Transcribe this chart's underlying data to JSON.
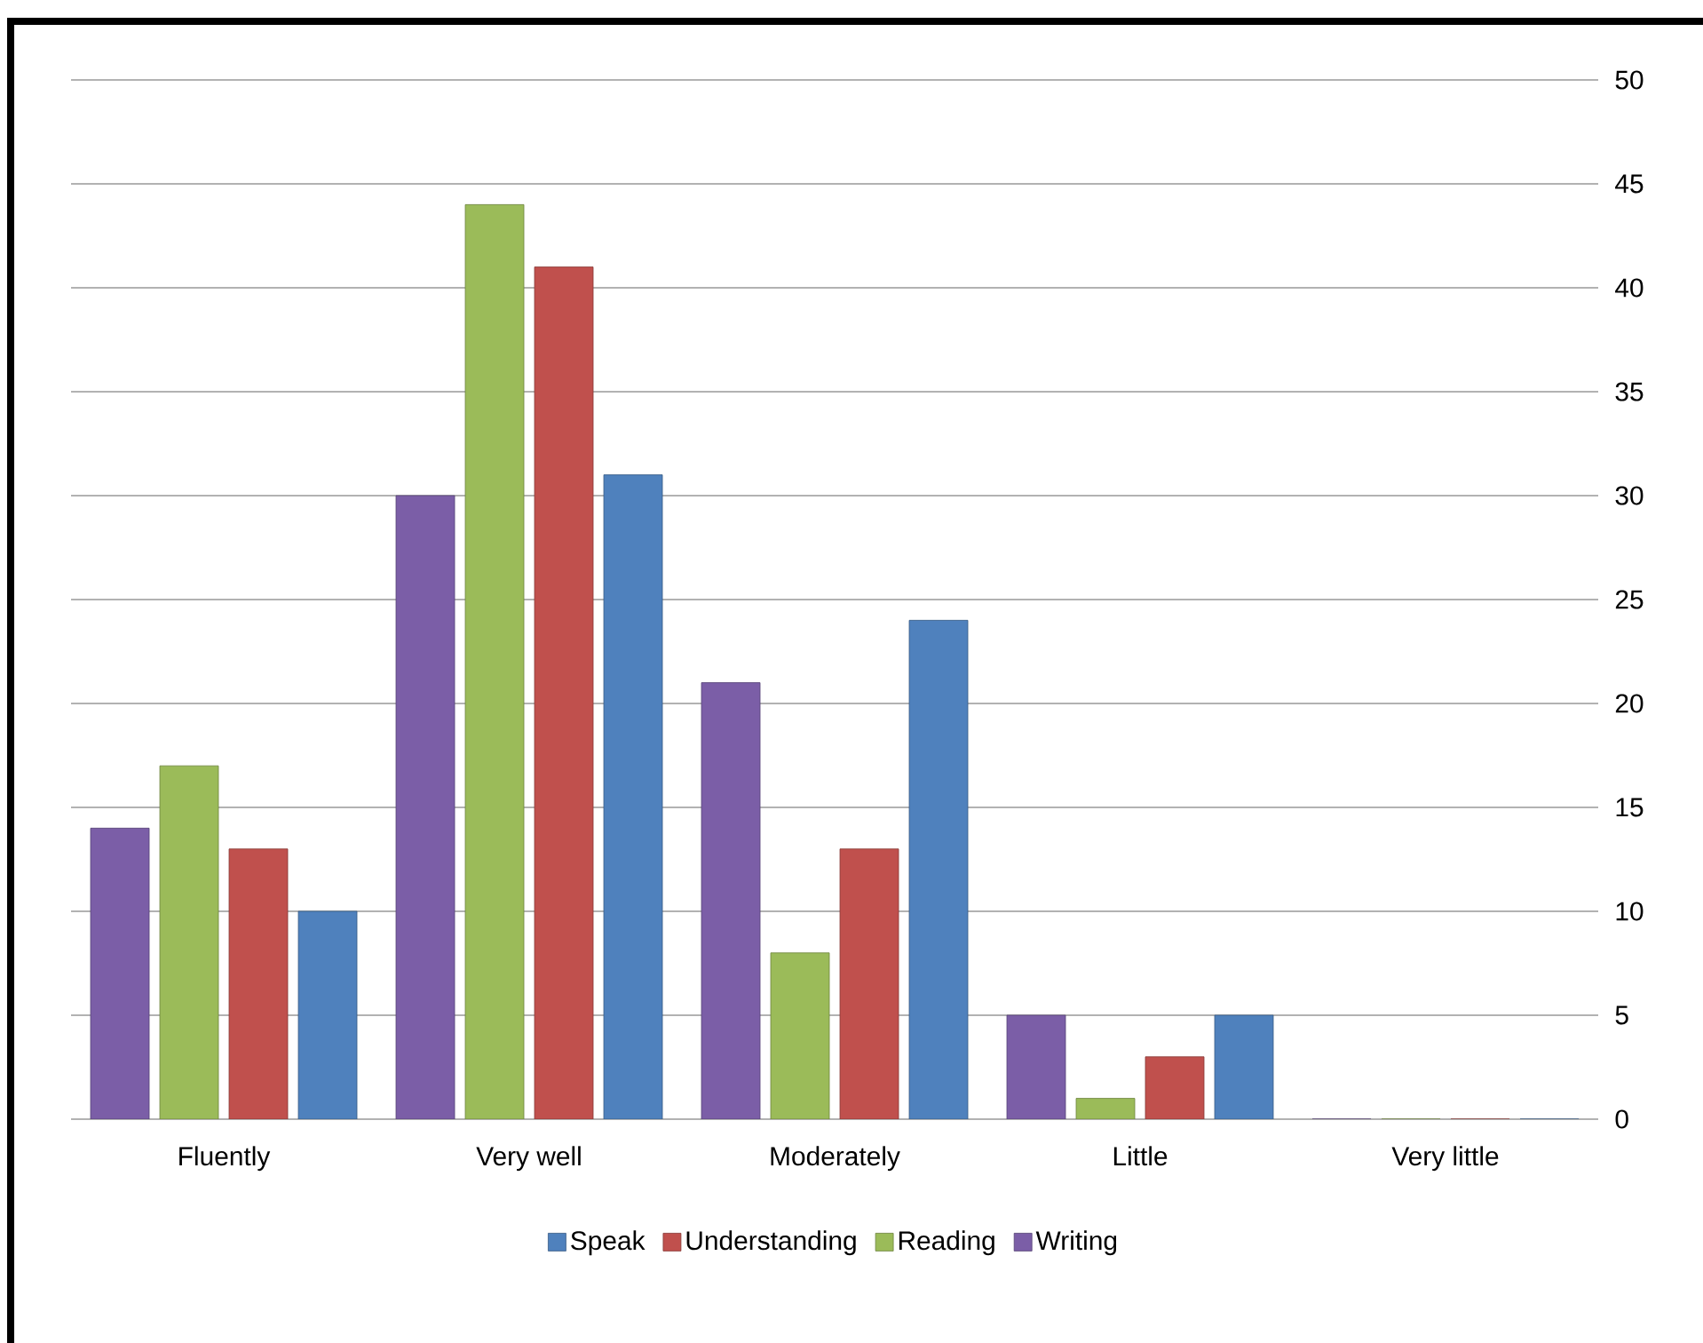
{
  "chart_data": {
    "type": "bar",
    "categories": [
      "Fluently",
      "Very well",
      "Moderately",
      "Little",
      "Very little"
    ],
    "series": [
      {
        "name": "Writing",
        "color": "#7b5ea7",
        "values": [
          14,
          30,
          21,
          5,
          0
        ]
      },
      {
        "name": "Reading",
        "color": "#9bbb59",
        "values": [
          17,
          44,
          8,
          1,
          0
        ]
      },
      {
        "name": "Understanding",
        "color": "#c0504d",
        "values": [
          13,
          41,
          13,
          3,
          0
        ]
      },
      {
        "name": "Speak",
        "color": "#4f81bd",
        "values": [
          10,
          31,
          24,
          5,
          0
        ]
      }
    ],
    "ylim": [
      0,
      50
    ],
    "yticks": [
      0,
      5,
      10,
      15,
      20,
      25,
      30,
      35,
      40,
      45,
      50
    ],
    "grid": "y",
    "legend": "bottom"
  }
}
